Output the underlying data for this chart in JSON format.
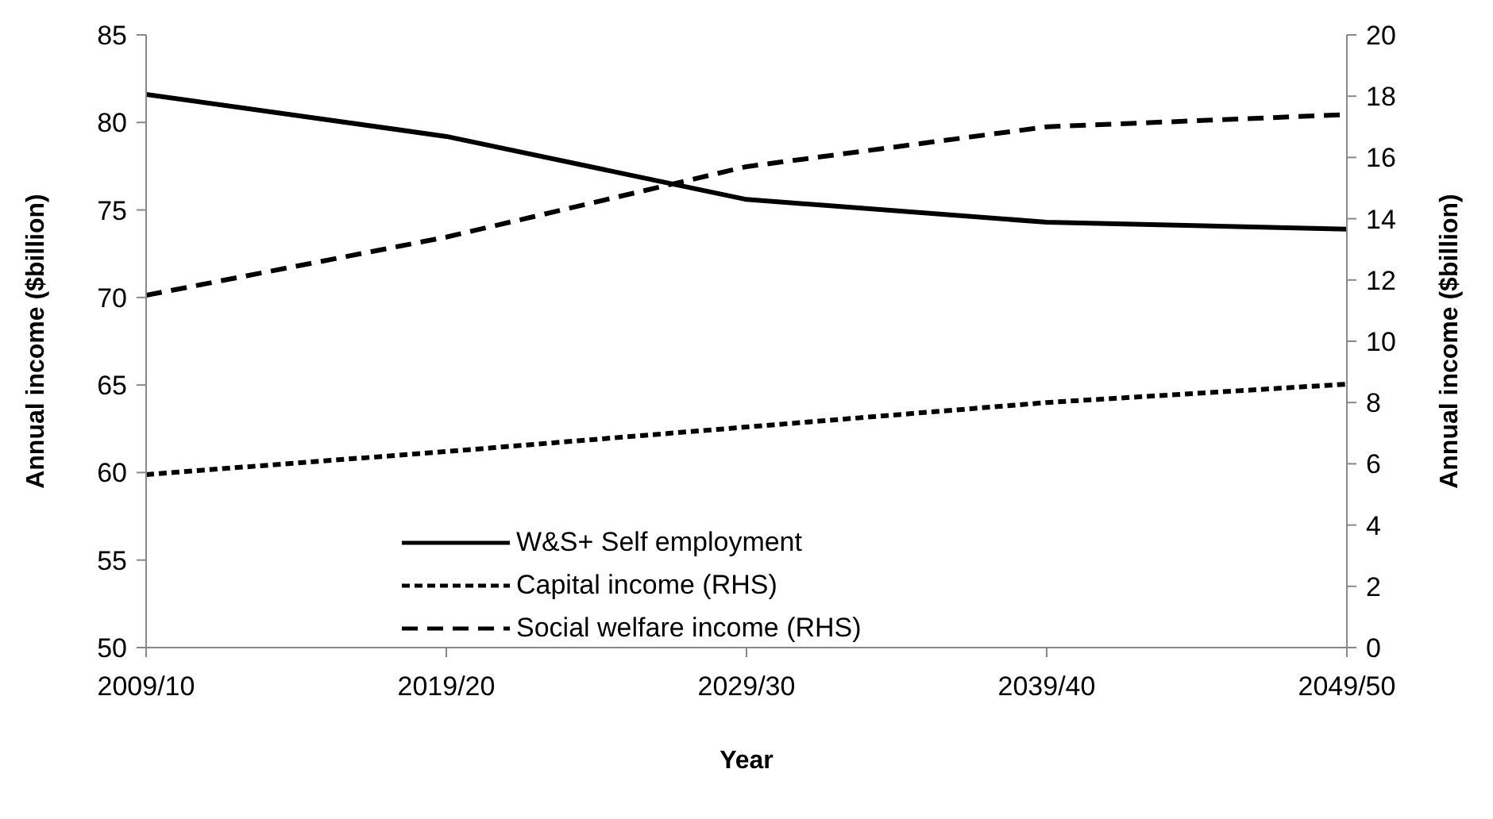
{
  "chart_data": {
    "type": "line",
    "xlabel": "Year",
    "ylabel": "Annual income ($billion)",
    "y2label": "Annual income ($billion)",
    "categories": [
      "2009/10",
      "2019/20",
      "2029/30",
      "2039/40",
      "2049/50"
    ],
    "series": [
      {
        "name": "W&S+ Self employment",
        "color": "#000000",
        "line_style": "solid",
        "values": [
          81.6,
          79.2,
          75.6,
          74.3,
          73.9
        ]
      },
      {
        "name": "Capital income (RHS)",
        "color": "#000000",
        "line_style": "dotted",
        "axis": "y2",
        "values": [
          5.65,
          6.4,
          7.2,
          8.0,
          8.6
        ]
      },
      {
        "name": "Social welfare income (RHS)",
        "color": "#000000",
        "line_style": "dashed",
        "axis": "y2",
        "values": [
          11.5,
          13.4,
          15.7,
          17.0,
          17.4
        ]
      }
    ],
    "ylim": [
      50,
      85
    ],
    "yticks": [
      50,
      55,
      60,
      65,
      70,
      75,
      80,
      85
    ],
    "y2lim": [
      0,
      20
    ],
    "y2ticks": [
      0,
      2,
      4,
      6,
      8,
      10,
      12,
      14,
      16,
      18,
      20
    ],
    "grid": false,
    "legend": "bottom",
    "marker": "none"
  }
}
